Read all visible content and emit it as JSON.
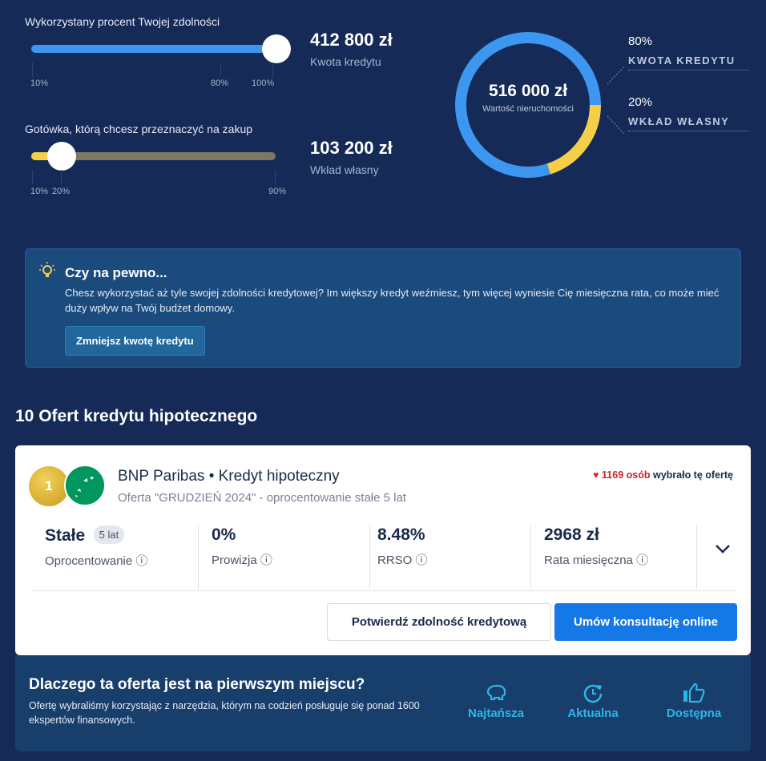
{
  "slider1": {
    "label": "Wykorzystany procent Twojej zdolności",
    "value_percent": 100,
    "ticks": [
      "10%",
      "80%",
      "100%"
    ],
    "amount": "412 800 zł",
    "amount_label": "Kwota kredytu",
    "color": "#3d97f0"
  },
  "slider2": {
    "label": "Gotówka, którą chcesz przeznaczyć na zakup",
    "value_percent": 20,
    "ticks": [
      "10%",
      "20%",
      "90%"
    ],
    "amount": "103 200 zł",
    "amount_label": "Wkład własny",
    "color": "#f5cf47"
  },
  "donut": {
    "value": "516 000 zł",
    "label": "Wartość nieruchomości",
    "segments": [
      {
        "percent": "80%",
        "label": "KWOTA KREDYTU",
        "share": 80,
        "color": "#3d97f0"
      },
      {
        "percent": "20%",
        "label": "WKŁAD WŁASNY",
        "share": 20,
        "color": "#f5cf47"
      }
    ]
  },
  "info": {
    "icon": "lightbulb-icon",
    "title": "Czy na pewno...",
    "text": "Chesz wykorzystać aż tyle swojej zdolności kredytowej? Im większy kredyt weźmiesz, tym więcej wyniesie Cię miesięczna rata, co może mieć duży wpływ na Twój budżet domowy.",
    "button": "Zmniejsz kwotę kredytu"
  },
  "offers_heading": "10 Ofert kredytu hipotecznego",
  "offer": {
    "rank": "1",
    "bank_title": "BNP Paribas • Kredyt hipoteczny",
    "subtitle": "Oferta \"GRUDZIEŃ 2024\" - oprocentowanie stałe 5 lat",
    "popularity_count": "1169 osób",
    "popularity_text": "wybrało tę ofertę",
    "stats": [
      {
        "value": "Stałe",
        "badge": "5 lat",
        "label": "Oprocentowanie"
      },
      {
        "value": "0%",
        "label": "Prowizja"
      },
      {
        "value": "8.48%",
        "label": "RRSO"
      },
      {
        "value": "2968 zł",
        "label": "Rata miesięczna"
      }
    ],
    "btn_confirm": "Potwierdź zdolność kredytową",
    "btn_consult": "Umów konsultację online"
  },
  "why": {
    "title": "Dlaczego ta oferta jest na pierwszym miejscu?",
    "text": "Ofertę wybraliśmy korzystając z narzędzia, którym na codzień posługuje się ponad 1600 ekspertów finansowych.",
    "features": [
      {
        "icon": "piggy-bank-icon",
        "label": "Najtańsza"
      },
      {
        "icon": "clock-refresh-icon",
        "label": "Aktualna"
      },
      {
        "icon": "thumbs-up-icon",
        "label": "Dostępna"
      }
    ]
  }
}
